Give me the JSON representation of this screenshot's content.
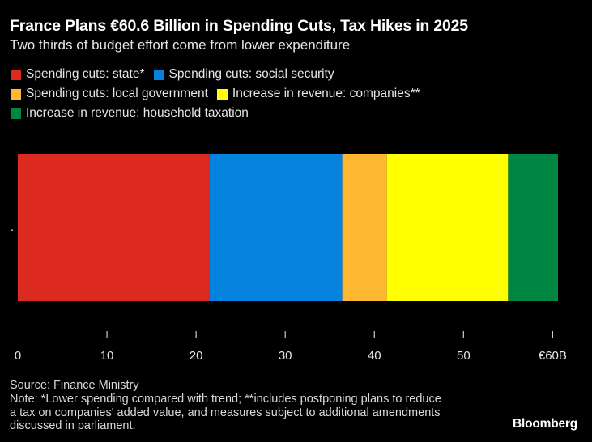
{
  "title": "France Plans €60.6 Billion in Spending Cuts, Tax Hikes in 2025",
  "subtitle": "Two thirds of budget effort come from lower expenditure",
  "source": "Source: Finance Ministry",
  "note": "Note: *Lower spending compared with trend; **includes postponing plans to reduce a tax on companies' added value, and measures subject to additional amendments discussed in parliament.",
  "brand": "Bloomberg",
  "chart_data": {
    "type": "bar",
    "orientation": "horizontal",
    "stacked": true,
    "categories": [
      "."
    ],
    "series": [
      {
        "name": "Spending cuts: state*",
        "color": "#dd2a20",
        "values": [
          21.5
        ]
      },
      {
        "name": "Spending cuts: social security",
        "color": "#0582de",
        "values": [
          14.9
        ]
      },
      {
        "name": "Spending cuts: local government",
        "color": "#fdb731",
        "values": [
          5.0
        ]
      },
      {
        "name": "Increase in revenue: companies**",
        "color": "#ffff00",
        "values": [
          13.6
        ]
      },
      {
        "name": "Increase in revenue: household taxation",
        "color": "#008542",
        "values": [
          5.6
        ]
      }
    ],
    "xticks": [
      "0",
      "10",
      "20",
      "30",
      "40",
      "50",
      "€60B"
    ],
    "xtick_values": [
      0,
      10,
      20,
      30,
      40,
      50,
      60
    ],
    "xlim": [
      0,
      60.6
    ],
    "grid": false,
    "legend_position": "top-left"
  }
}
